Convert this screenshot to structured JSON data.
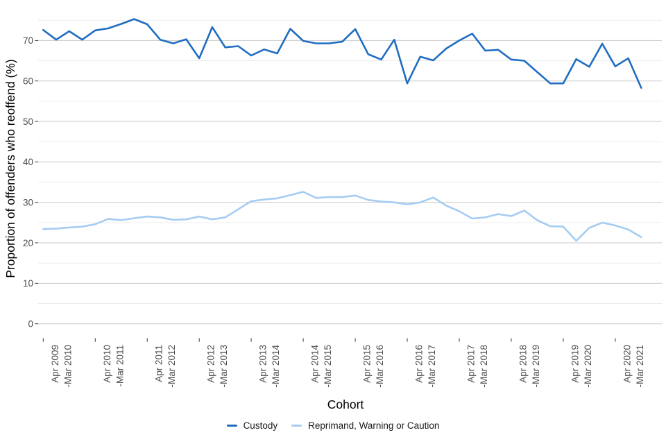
{
  "page": {
    "background": "#ffffff"
  },
  "chart_data": {
    "type": "line",
    "title": "",
    "xlabel": "Cohort",
    "ylabel": "Proportion of offenders who reoffend (%)",
    "ylim": [
      0,
      78
    ],
    "grid": "on",
    "legend_position": "bottom",
    "y_major_ticks": [
      0,
      10,
      20,
      30,
      40,
      50,
      60,
      70
    ],
    "y_minor_ticks": [
      5,
      15,
      25,
      35,
      45,
      55,
      65,
      75
    ],
    "points_per_labeled_tick": 4,
    "n_points": 47,
    "x_tick_labels": [
      {
        "line1": "Apr 2009",
        "line2": "-Mar 2010"
      },
      {
        "line1": "Apr 2010",
        "line2": "-Mar 2011"
      },
      {
        "line1": "Apr 2011",
        "line2": "-Mar 2012"
      },
      {
        "line1": "Apr 2012",
        "line2": "-Mar 2013"
      },
      {
        "line1": "Apr 2013",
        "line2": "-Mar 2014"
      },
      {
        "line1": "Apr 2014",
        "line2": "-Mar 2015"
      },
      {
        "line1": "Apr 2015",
        "line2": "-Mar 2016"
      },
      {
        "line1": "Apr 2016",
        "line2": "-Mar 2017"
      },
      {
        "line1": "Apr 2017",
        "line2": "-Mar 2018"
      },
      {
        "line1": "Apr 2018",
        "line2": "-Mar 2019"
      },
      {
        "line1": "Apr 2019",
        "line2": "-Mar 2020"
      },
      {
        "line1": "Apr 2020",
        "line2": "-Mar 2021"
      }
    ],
    "series": [
      {
        "key": "custody",
        "name": "Custody",
        "color": "#1F6DC2",
        "values": [
          72.6,
          70.2,
          72.3,
          70.2,
          72.5,
          73.0,
          74.1,
          75.3,
          74.0,
          70.2,
          69.3,
          70.3,
          65.6,
          73.3,
          68.3,
          68.6,
          66.3,
          67.8,
          66.8,
          72.9,
          69.9,
          69.3,
          69.3,
          69.7,
          72.8,
          66.6,
          65.3,
          70.2,
          59.4,
          66.0,
          65.1,
          68.0,
          70.0,
          71.7,
          67.5,
          67.7,
          65.3,
          65.0,
          62.2,
          59.4,
          59.4,
          65.4,
          63.5,
          69.2,
          63.6,
          65.6,
          58.3
        ]
      },
      {
        "key": "reprimand-warning-caution",
        "name": "Reprimand, Warning or Caution",
        "color": "#A5CCF2",
        "values": [
          23.4,
          23.5,
          23.8,
          24.0,
          24.6,
          25.9,
          25.6,
          26.1,
          26.5,
          26.3,
          25.7,
          25.8,
          26.5,
          25.8,
          26.3,
          28.3,
          30.3,
          30.7,
          31.0,
          31.8,
          32.6,
          31.1,
          31.3,
          31.3,
          31.7,
          30.6,
          30.2,
          30.0,
          29.5,
          30.0,
          31.2,
          29.2,
          27.8,
          26.0,
          26.3,
          27.1,
          26.6,
          28.0,
          25.6,
          24.1,
          24.0,
          20.5,
          23.7,
          25.0,
          24.3,
          23.3,
          21.4
        ]
      }
    ],
    "style": {
      "grid_major_color": "#C8C8C8",
      "grid_minor_color": "#EBEBEB",
      "tick_mark_color": "#333333",
      "tick_label_color": "#4D4D4D"
    }
  }
}
